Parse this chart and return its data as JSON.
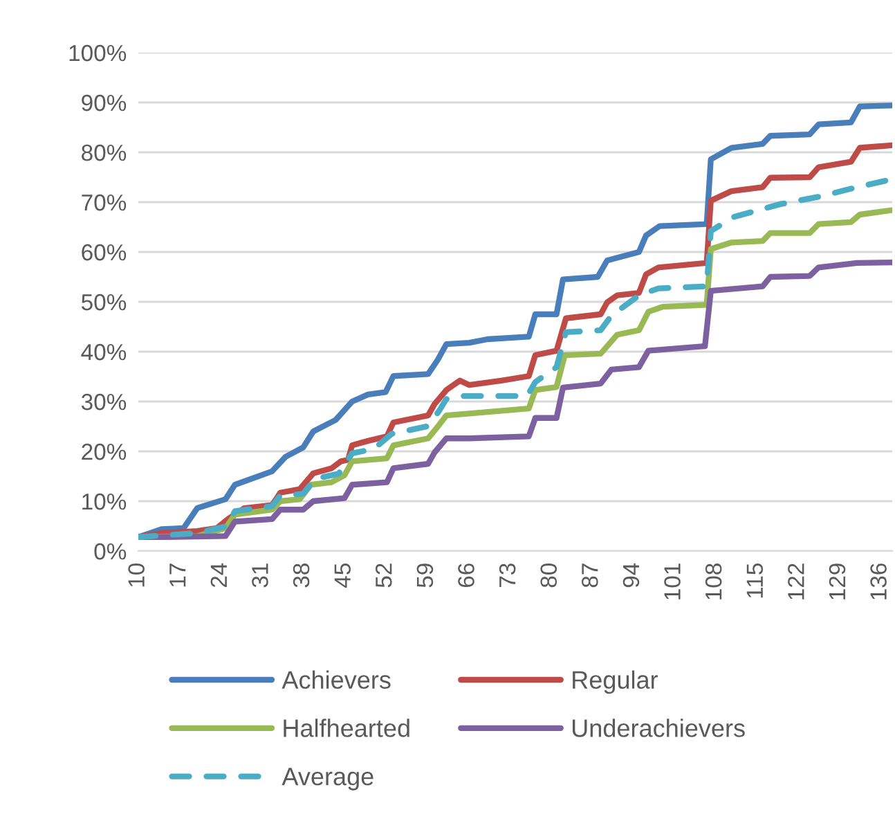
{
  "chart_data": {
    "type": "line",
    "xlim": [
      10,
      138
    ],
    "xticks": [
      10,
      17,
      24,
      31,
      38,
      45,
      52,
      59,
      66,
      73,
      80,
      87,
      94,
      101,
      108,
      115,
      122,
      129,
      136
    ],
    "ylim": [
      0,
      100
    ],
    "yticks": [
      {
        "value": 0,
        "label": "0%"
      },
      {
        "value": 10,
        "label": "10%"
      },
      {
        "value": 20,
        "label": "20%"
      },
      {
        "value": 30,
        "label": "30%"
      },
      {
        "value": 40,
        "label": "40%"
      },
      {
        "value": 50,
        "label": "50%"
      },
      {
        "value": 60,
        "label": "60%"
      },
      {
        "value": 70,
        "label": "70%"
      },
      {
        "value": 80,
        "label": "80%"
      },
      {
        "value": 90,
        "label": "90%"
      },
      {
        "value": 100,
        "label": "100%"
      }
    ],
    "grid": "y",
    "legend": "bottom",
    "series": [
      {
        "name": "Achievers",
        "color": "#4a7ebb",
        "x": [
          10,
          14,
          17.7,
          20,
          24.8,
          26.4,
          32.7,
          35,
          38,
          39.7,
          43.5,
          46.3,
          49,
          52,
          53.3,
          59.2,
          60.8,
          62.3,
          66.2,
          69.3,
          76.3,
          77.4,
          81,
          82.1,
          88,
          89.6,
          95,
          96.2,
          98.5,
          106.5,
          107.2,
          110.7,
          116,
          117.3,
          124,
          125.5,
          131,
          132.5,
          138
        ],
        "values": [
          2.8,
          4.4,
          4.6,
          8.6,
          10.4,
          13.3,
          16,
          18.9,
          20.8,
          24,
          26.3,
          30,
          31.4,
          31.9,
          35.1,
          35.5,
          38.3,
          41.5,
          41.8,
          42.5,
          43,
          47.5,
          47.5,
          54.5,
          55,
          58.3,
          60,
          63.3,
          65.2,
          65.6,
          78.6,
          80.9,
          81.7,
          83.3,
          83.6,
          85.6,
          86,
          89.2,
          89.4
        ]
      },
      {
        "name": "Regular",
        "color": "#be4b48",
        "x": [
          10,
          14,
          20,
          23.3,
          25.2,
          28,
          32.7,
          34.1,
          37.4,
          39.7,
          42.8,
          44.4,
          45.6,
          46.3,
          49,
          52.2,
          53.3,
          59.2,
          60.3,
          62.3,
          64.6,
          66.2,
          71.6,
          76.3,
          77.4,
          81,
          82.6,
          88.5,
          89.6,
          91.3,
          95,
          96.2,
          98.3,
          106.5,
          107.2,
          110.7,
          116,
          117.3,
          124,
          125.5,
          131,
          132.5,
          138
        ],
        "values": [
          2.8,
          3.6,
          4,
          4.6,
          6.4,
          8.6,
          9.2,
          11.7,
          12.4,
          15.6,
          16.6,
          18,
          18.3,
          21.2,
          22.1,
          23,
          25.8,
          27.2,
          29.5,
          32.3,
          34.2,
          33.3,
          34.2,
          35.1,
          39.3,
          40.2,
          46.7,
          47.5,
          49.9,
          51.3,
          51.8,
          55.5,
          56.9,
          57.8,
          70.3,
          72.2,
          73,
          74.9,
          75,
          77,
          78.1,
          80.9,
          81.4
        ]
      },
      {
        "name": "Halfhearted",
        "color": "#98b954",
        "x": [
          10,
          20,
          24.8,
          26.4,
          32.7,
          34.1,
          37.4,
          39.3,
          42.8,
          45,
          46.3,
          52.2,
          53.3,
          59.2,
          60.8,
          62.3,
          66.2,
          76.3,
          77.4,
          81,
          82.4,
          88.5,
          91.3,
          95,
          96.6,
          99,
          106.5,
          107.2,
          110.7,
          116,
          117.3,
          124,
          125.5,
          131,
          132.5,
          138
        ],
        "values": [
          2.8,
          3,
          4.6,
          7.3,
          8.3,
          10,
          10.4,
          13.3,
          13.8,
          15.2,
          18,
          18.6,
          21.2,
          22.6,
          24.9,
          27.2,
          27.6,
          28.6,
          32.3,
          32.9,
          39.3,
          39.6,
          43.4,
          44.3,
          48,
          49,
          49.4,
          60.6,
          61.9,
          62.2,
          63.8,
          63.8,
          65.6,
          66,
          67.5,
          68.4
        ]
      },
      {
        "name": "Underachievers",
        "color": "#7d60a0",
        "x": [
          10,
          14,
          24.8,
          26.4,
          32.7,
          34.1,
          38,
          39.7,
          45,
          46.3,
          52.2,
          53.3,
          59.2,
          60.3,
          62.3,
          66.2,
          76.3,
          77.4,
          81,
          82.1,
          88.5,
          90.3,
          95,
          96.6,
          106.2,
          107.2,
          116,
          117.3,
          124,
          125.5,
          132,
          138
        ],
        "values": [
          2.8,
          2.8,
          3,
          5.9,
          6.4,
          8.3,
          8.3,
          10,
          10.6,
          13.3,
          13.8,
          16.6,
          17.5,
          19.8,
          22.6,
          22.6,
          23,
          26.7,
          26.7,
          32.8,
          33.6,
          36.4,
          36.9,
          40.2,
          41.1,
          52.2,
          53.1,
          55,
          55.2,
          56.9,
          57.8,
          57.9
        ]
      },
      {
        "name": "Average",
        "color": "#4bacc6",
        "line_style": "dashed",
        "x": [
          10,
          20,
          25,
          26.4,
          32.7,
          34,
          38,
          40,
          44,
          46.3,
          50,
          53,
          59,
          61,
          62.3,
          65,
          76,
          77.4,
          81,
          82.6,
          88.5,
          90.3,
          95,
          98.3,
          106.5,
          107.2,
          111,
          119,
          126,
          132,
          138
        ],
        "values": [
          2.8,
          3.6,
          5,
          8,
          9,
          11,
          11.5,
          14.5,
          15.5,
          19.6,
          20.5,
          23.5,
          25,
          28,
          30.5,
          31.1,
          31.1,
          33.9,
          36.9,
          43.9,
          44.3,
          47.2,
          51.3,
          52.7,
          53.1,
          64.2,
          67,
          69.6,
          71.2,
          73,
          74.6
        ]
      }
    ]
  }
}
